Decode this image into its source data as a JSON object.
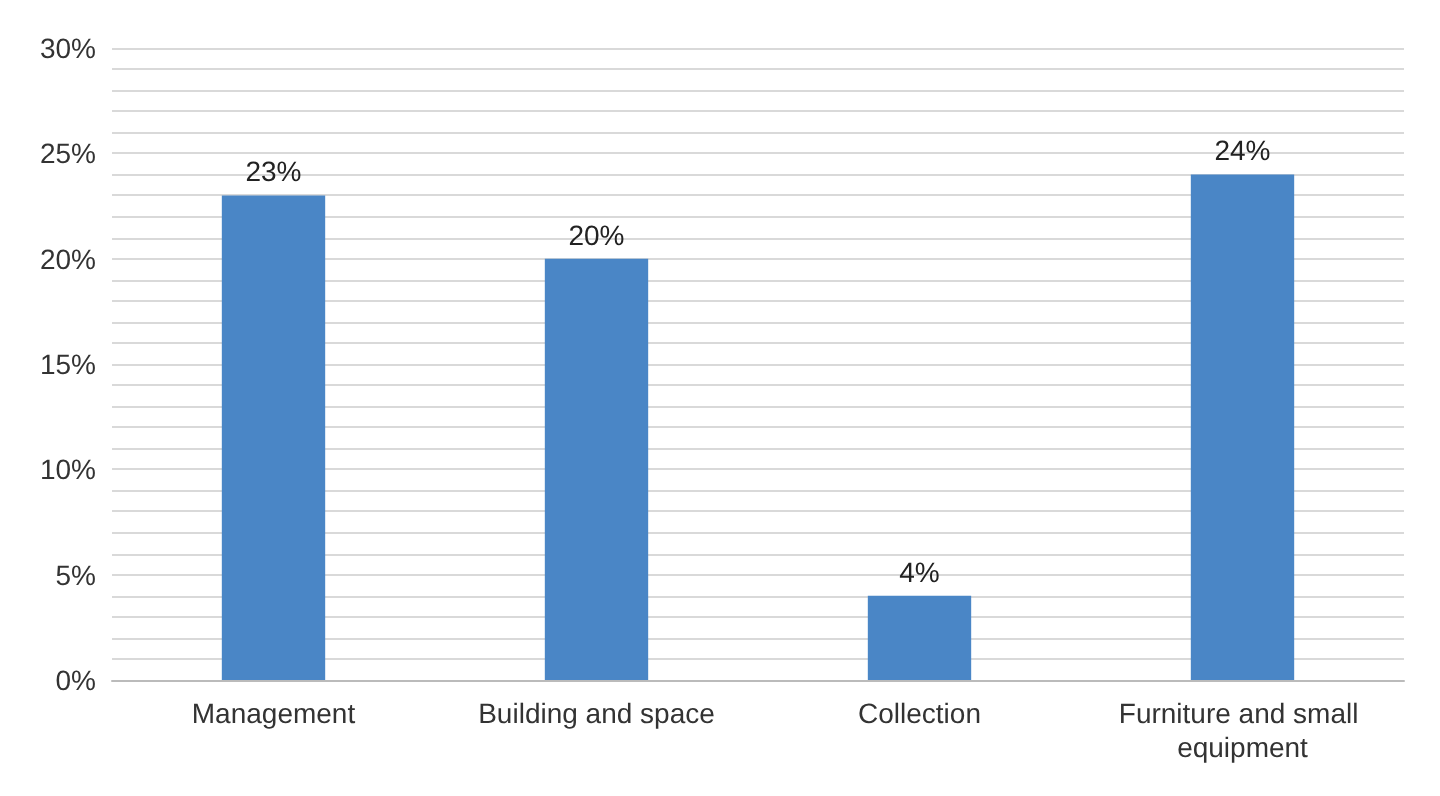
{
  "chart_data": {
    "type": "bar",
    "categories": [
      "Management",
      "Building and space",
      "Collection",
      "Furniture and small equipment"
    ],
    "values": [
      23,
      20,
      4,
      24
    ],
    "color": "#4a86c6",
    "value_labels": [
      "23%",
      "20%",
      "4%",
      "24%"
    ],
    "ylim": [
      0,
      30
    ],
    "yticks": [
      {
        "value": 0,
        "label": "0%"
      },
      {
        "value": 1,
        "label": null
      },
      {
        "value": 2,
        "label": null
      },
      {
        "value": 3,
        "label": null
      },
      {
        "value": 4,
        "label": null
      },
      {
        "value": 5,
        "label": "5%"
      },
      {
        "value": 6,
        "label": null
      },
      {
        "value": 7,
        "label": null
      },
      {
        "value": 8,
        "label": null
      },
      {
        "value": 9,
        "label": null
      },
      {
        "value": 10,
        "label": "10%"
      },
      {
        "value": 11,
        "label": null
      },
      {
        "value": 12,
        "label": null
      },
      {
        "value": 13,
        "label": null
      },
      {
        "value": 14,
        "label": null
      },
      {
        "value": 15,
        "label": "15%"
      },
      {
        "value": 16,
        "label": null
      },
      {
        "value": 17,
        "label": null
      },
      {
        "value": 18,
        "label": null
      },
      {
        "value": 19,
        "label": null
      },
      {
        "value": 20,
        "label": "20%"
      },
      {
        "value": 21,
        "label": null
      },
      {
        "value": 22,
        "label": null
      },
      {
        "value": 23,
        "label": null
      },
      {
        "value": 24,
        "label": null
      },
      {
        "value": 25,
        "label": "25%"
      },
      {
        "value": 26,
        "label": null
      },
      {
        "value": 27,
        "label": null
      },
      {
        "value": 28,
        "label": null
      },
      {
        "value": 29,
        "label": null
      },
      {
        "value": 30,
        "label": "30%"
      }
    ],
    "grid": "y"
  }
}
